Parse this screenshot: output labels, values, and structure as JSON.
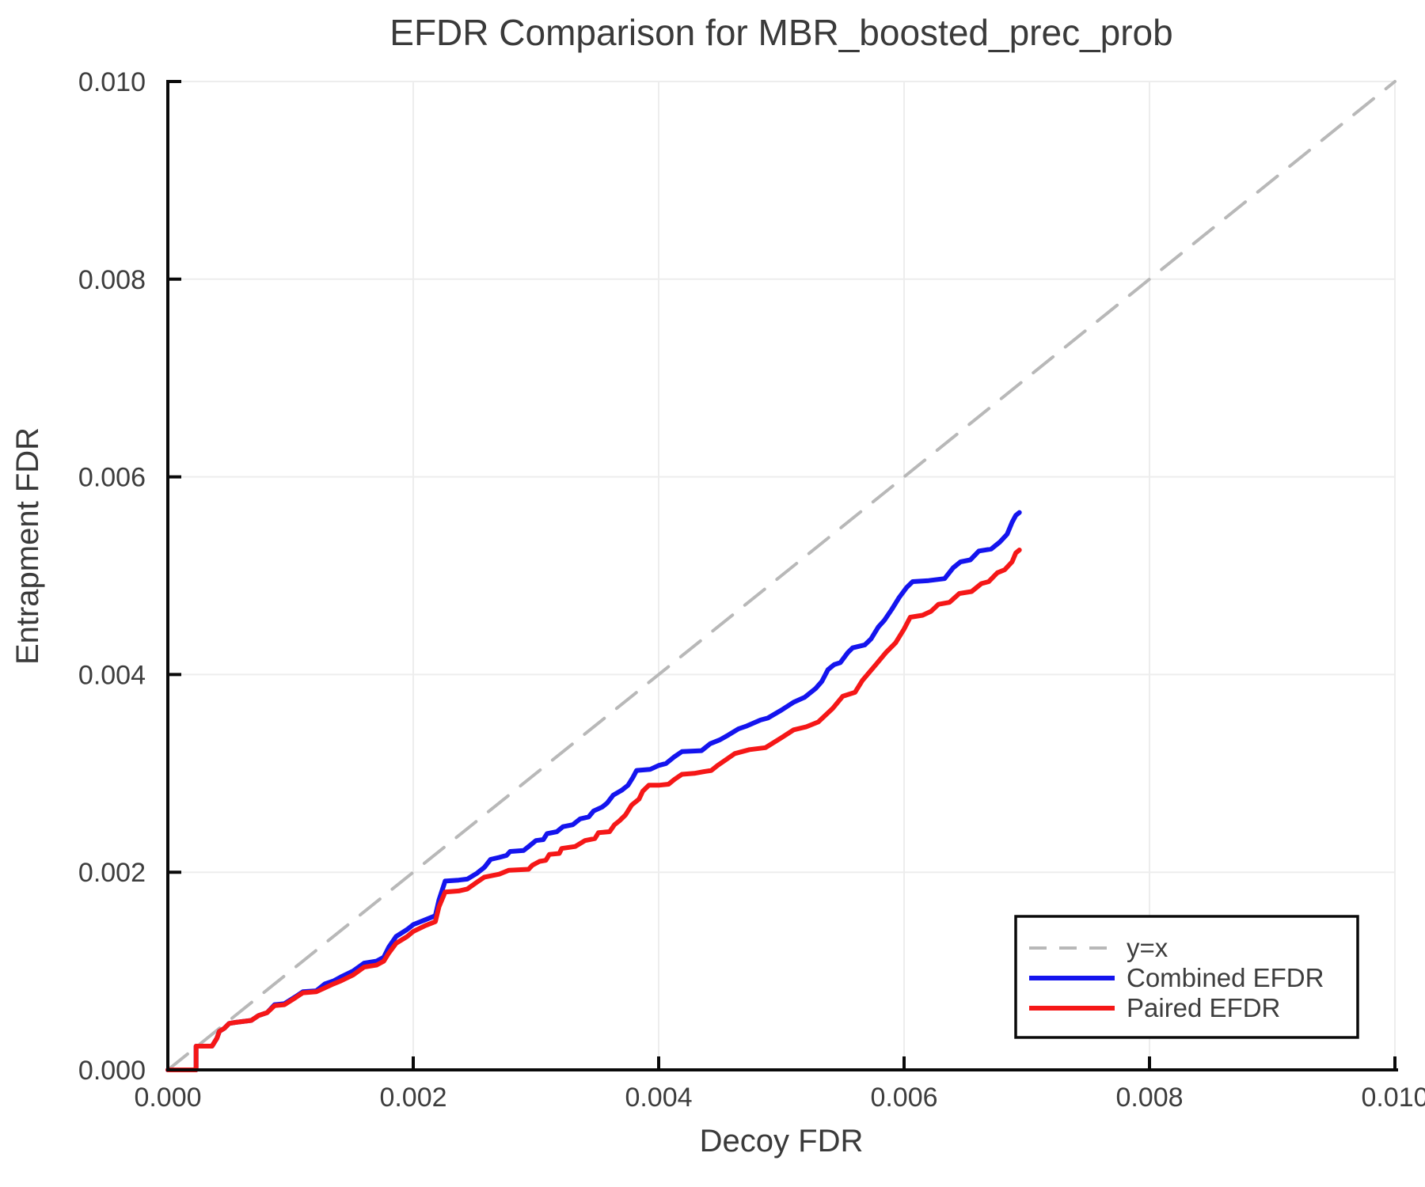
{
  "chart": {
    "title": "EFDR Comparison for MBR_boosted_prec_prob",
    "xlabel": "Decoy FDR",
    "ylabel": "Entrapment FDR"
  },
  "legend": {
    "position": "lower right",
    "entries": [
      {
        "label": "y=x",
        "color": "#b8b8b8",
        "dashed": true
      },
      {
        "label": "Combined EFDR",
        "color": "#1414ee",
        "dashed": false
      },
      {
        "label": "Paired EFDR",
        "color": "#f51717",
        "dashed": false
      }
    ]
  },
  "chart_data": {
    "type": "line",
    "title": "EFDR Comparison for MBR_boosted_prec_prob",
    "xlabel": "Decoy FDR",
    "ylabel": "Entrapment FDR",
    "xlim": [
      0.0,
      0.01
    ],
    "ylim": [
      0.0,
      0.01
    ],
    "grid": true,
    "legend_position": "lower right",
    "x_ticks": [
      0.0,
      0.002,
      0.004,
      0.006,
      0.008,
      0.01
    ],
    "x_tick_labels": [
      "0.000",
      "0.002",
      "0.004",
      "0.006",
      "0.008",
      "0.010"
    ],
    "y_ticks": [
      0.0,
      0.002,
      0.004,
      0.006,
      0.008,
      0.01
    ],
    "y_tick_labels": [
      "0.000",
      "0.002",
      "0.004",
      "0.006",
      "0.008",
      "0.010"
    ],
    "series": [
      {
        "name": "y=x",
        "color": "#b8b8b8",
        "style": "dashed",
        "points": [
          [
            0.0,
            0.0
          ],
          [
            0.01,
            0.01
          ]
        ]
      },
      {
        "name": "Combined EFDR",
        "color": "#1414ee",
        "style": "solid",
        "points": [
          [
            0.0,
            0.0
          ],
          [
            0.00023,
            0.0
          ],
          [
            0.00023,
            0.00024
          ],
          [
            0.00036,
            0.00024
          ],
          [
            0.0004,
            0.00032
          ],
          [
            0.00042,
            0.00039
          ],
          [
            0.00046,
            0.00042
          ],
          [
            0.0005,
            0.00047
          ],
          [
            0.00055,
            0.00048
          ],
          [
            0.00068,
            0.0005
          ],
          [
            0.00074,
            0.00055
          ],
          [
            0.00081,
            0.00058
          ],
          [
            0.00087,
            0.00066
          ],
          [
            0.00095,
            0.00067
          ],
          [
            0.00104,
            0.00074
          ],
          [
            0.0011,
            0.00079
          ],
          [
            0.00121,
            0.0008
          ],
          [
            0.00128,
            0.00087
          ],
          [
            0.00135,
            0.0009
          ],
          [
            0.00141,
            0.00094
          ],
          [
            0.00151,
            0.001
          ],
          [
            0.0016,
            0.00108
          ],
          [
            0.0017,
            0.0011
          ],
          [
            0.00176,
            0.00114
          ],
          [
            0.0018,
            0.00124
          ],
          [
            0.00186,
            0.00135
          ],
          [
            0.00195,
            0.00142
          ],
          [
            0.002,
            0.00147
          ],
          [
            0.0021,
            0.00152
          ],
          [
            0.00218,
            0.00156
          ],
          [
            0.00221,
            0.00172
          ],
          [
            0.00226,
            0.00191
          ],
          [
            0.00237,
            0.00192
          ],
          [
            0.00244,
            0.00193
          ],
          [
            0.00252,
            0.00199
          ],
          [
            0.00258,
            0.00205
          ],
          [
            0.00263,
            0.00213
          ],
          [
            0.0027,
            0.00215
          ],
          [
            0.00276,
            0.00217
          ],
          [
            0.00279,
            0.00221
          ],
          [
            0.0029,
            0.00222
          ],
          [
            0.00295,
            0.00227
          ],
          [
            0.003,
            0.00232
          ],
          [
            0.00306,
            0.00233
          ],
          [
            0.00309,
            0.00239
          ],
          [
            0.00317,
            0.00241
          ],
          [
            0.00322,
            0.00246
          ],
          [
            0.0033,
            0.00248
          ],
          [
            0.00336,
            0.00254
          ],
          [
            0.00343,
            0.00256
          ],
          [
            0.00347,
            0.00262
          ],
          [
            0.00354,
            0.00266
          ],
          [
            0.00358,
            0.0027
          ],
          [
            0.00363,
            0.00278
          ],
          [
            0.0037,
            0.00283
          ],
          [
            0.00375,
            0.00288
          ],
          [
            0.00379,
            0.00296
          ],
          [
            0.00382,
            0.00303
          ],
          [
            0.00393,
            0.00304
          ],
          [
            0.004,
            0.00308
          ],
          [
            0.00406,
            0.0031
          ],
          [
            0.00413,
            0.00317
          ],
          [
            0.00419,
            0.00322
          ],
          [
            0.00435,
            0.00323
          ],
          [
            0.00442,
            0.0033
          ],
          [
            0.0045,
            0.00334
          ],
          [
            0.00457,
            0.00339
          ],
          [
            0.00465,
            0.00345
          ],
          [
            0.00472,
            0.00348
          ],
          [
            0.00483,
            0.00354
          ],
          [
            0.00489,
            0.00356
          ],
          [
            0.005,
            0.00364
          ],
          [
            0.0051,
            0.00372
          ],
          [
            0.00519,
            0.00377
          ],
          [
            0.00528,
            0.00386
          ],
          [
            0.00533,
            0.00393
          ],
          [
            0.00538,
            0.00405
          ],
          [
            0.00543,
            0.0041
          ],
          [
            0.00548,
            0.00412
          ],
          [
            0.00554,
            0.00422
          ],
          [
            0.00558,
            0.00427
          ],
          [
            0.00568,
            0.0043
          ],
          [
            0.00573,
            0.00436
          ],
          [
            0.00579,
            0.00448
          ],
          [
            0.00584,
            0.00455
          ],
          [
            0.0059,
            0.00466
          ],
          [
            0.00596,
            0.00478
          ],
          [
            0.00602,
            0.00488
          ],
          [
            0.00607,
            0.00494
          ],
          [
            0.0062,
            0.00495
          ],
          [
            0.00633,
            0.00497
          ],
          [
            0.0064,
            0.00508
          ],
          [
            0.00646,
            0.00514
          ],
          [
            0.00654,
            0.00516
          ],
          [
            0.00661,
            0.00525
          ],
          [
            0.00671,
            0.00527
          ],
          [
            0.00678,
            0.00534
          ],
          [
            0.00684,
            0.00542
          ],
          [
            0.00688,
            0.00554
          ],
          [
            0.00691,
            0.00561
          ],
          [
            0.00694,
            0.00564
          ]
        ]
      },
      {
        "name": "Paired EFDR",
        "color": "#f51717",
        "style": "solid",
        "points": [
          [
            0.0,
            0.0
          ],
          [
            0.00023,
            0.0
          ],
          [
            0.00023,
            0.00024
          ],
          [
            0.00036,
            0.00024
          ],
          [
            0.0004,
            0.00032
          ],
          [
            0.00042,
            0.00039
          ],
          [
            0.00046,
            0.00042
          ],
          [
            0.0005,
            0.00047
          ],
          [
            0.00055,
            0.00048
          ],
          [
            0.00068,
            0.0005
          ],
          [
            0.00074,
            0.00055
          ],
          [
            0.00081,
            0.00058
          ],
          [
            0.00087,
            0.00065
          ],
          [
            0.00095,
            0.00066
          ],
          [
            0.00104,
            0.00073
          ],
          [
            0.0011,
            0.00078
          ],
          [
            0.00121,
            0.00079
          ],
          [
            0.00128,
            0.00083
          ],
          [
            0.00135,
            0.00087
          ],
          [
            0.00141,
            0.0009
          ],
          [
            0.00151,
            0.00096
          ],
          [
            0.0016,
            0.00104
          ],
          [
            0.0017,
            0.00106
          ],
          [
            0.00176,
            0.0011
          ],
          [
            0.0018,
            0.00118
          ],
          [
            0.00186,
            0.00128
          ],
          [
            0.00195,
            0.00135
          ],
          [
            0.002,
            0.0014
          ],
          [
            0.0021,
            0.00146
          ],
          [
            0.00218,
            0.0015
          ],
          [
            0.00221,
            0.00165
          ],
          [
            0.00226,
            0.0018
          ],
          [
            0.00237,
            0.00181
          ],
          [
            0.00244,
            0.00183
          ],
          [
            0.00252,
            0.0019
          ],
          [
            0.00258,
            0.00195
          ],
          [
            0.0027,
            0.00198
          ],
          [
            0.00278,
            0.00202
          ],
          [
            0.00294,
            0.00203
          ],
          [
            0.00297,
            0.00207
          ],
          [
            0.00303,
            0.00211
          ],
          [
            0.00308,
            0.00212
          ],
          [
            0.00311,
            0.00218
          ],
          [
            0.00319,
            0.00219
          ],
          [
            0.00321,
            0.00224
          ],
          [
            0.00332,
            0.00226
          ],
          [
            0.0034,
            0.00232
          ],
          [
            0.00348,
            0.00234
          ],
          [
            0.00351,
            0.0024
          ],
          [
            0.0036,
            0.00241
          ],
          [
            0.00364,
            0.00248
          ],
          [
            0.00368,
            0.00252
          ],
          [
            0.00373,
            0.00258
          ],
          [
            0.00378,
            0.00268
          ],
          [
            0.00384,
            0.00274
          ],
          [
            0.00387,
            0.00282
          ],
          [
            0.00392,
            0.00288
          ],
          [
            0.004,
            0.00288
          ],
          [
            0.00408,
            0.00289
          ],
          [
            0.00413,
            0.00294
          ],
          [
            0.00419,
            0.00299
          ],
          [
            0.00429,
            0.003
          ],
          [
            0.00438,
            0.00302
          ],
          [
            0.00443,
            0.00303
          ],
          [
            0.00448,
            0.00308
          ],
          [
            0.00455,
            0.00314
          ],
          [
            0.00462,
            0.0032
          ],
          [
            0.00474,
            0.00324
          ],
          [
            0.00487,
            0.00326
          ],
          [
            0.005,
            0.00336
          ],
          [
            0.0051,
            0.00344
          ],
          [
            0.0052,
            0.00347
          ],
          [
            0.0053,
            0.00352
          ],
          [
            0.00542,
            0.00366
          ],
          [
            0.0055,
            0.00378
          ],
          [
            0.0056,
            0.00382
          ],
          [
            0.00566,
            0.00394
          ],
          [
            0.00577,
            0.0041
          ],
          [
            0.00585,
            0.00422
          ],
          [
            0.00593,
            0.00432
          ],
          [
            0.006,
            0.00446
          ],
          [
            0.00605,
            0.00458
          ],
          [
            0.00615,
            0.0046
          ],
          [
            0.00622,
            0.00464
          ],
          [
            0.00628,
            0.00471
          ],
          [
            0.00637,
            0.00473
          ],
          [
            0.00645,
            0.00482
          ],
          [
            0.00655,
            0.00484
          ],
          [
            0.00663,
            0.00492
          ],
          [
            0.00669,
            0.00494
          ],
          [
            0.00676,
            0.00503
          ],
          [
            0.00682,
            0.00506
          ],
          [
            0.00688,
            0.00514
          ],
          [
            0.00691,
            0.00523
          ],
          [
            0.00694,
            0.00526
          ]
        ]
      }
    ]
  }
}
